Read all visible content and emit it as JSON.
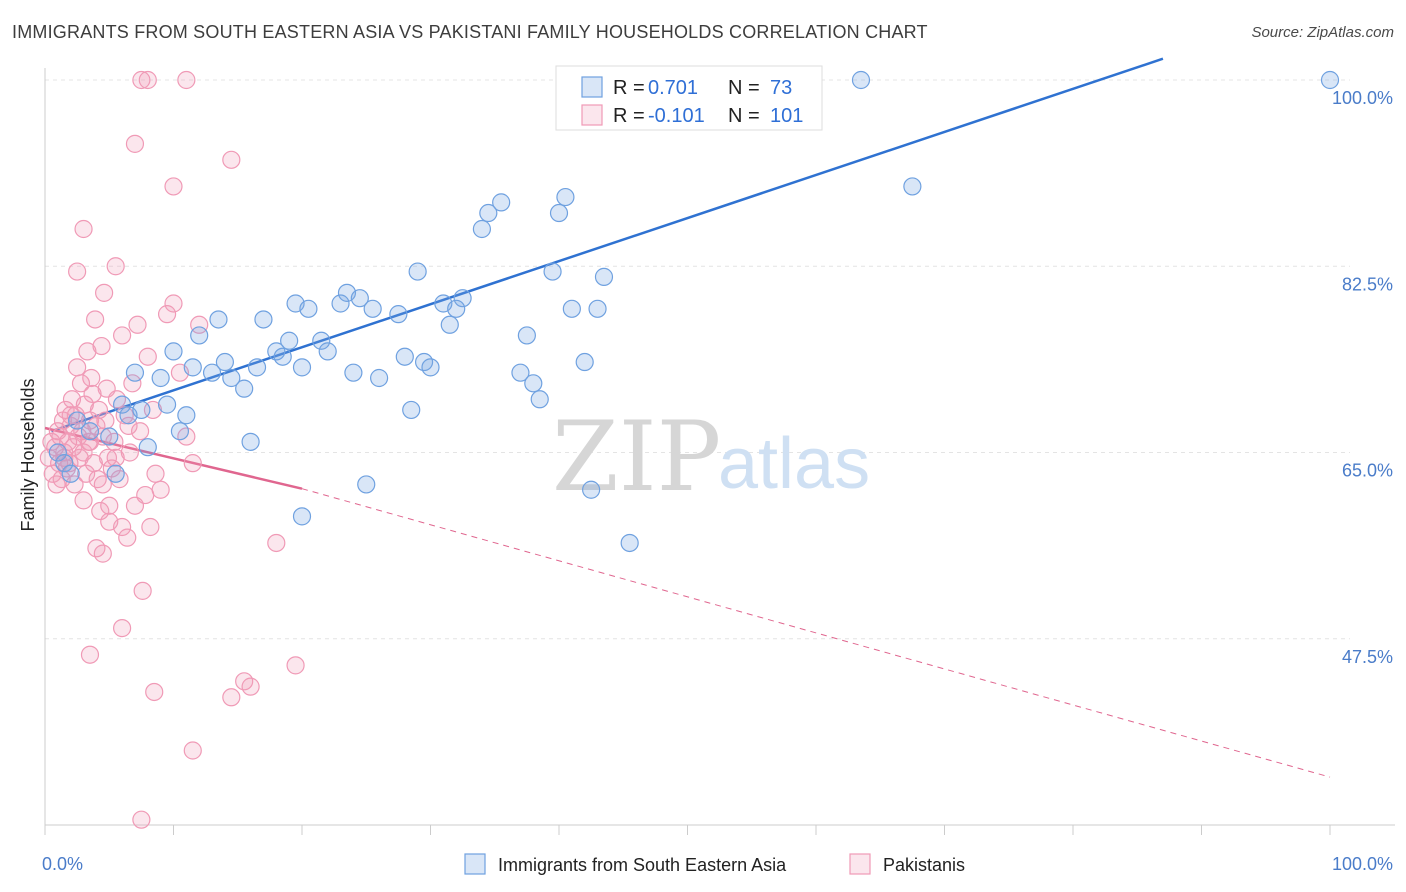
{
  "title": "IMMIGRANTS FROM SOUTH EASTERN ASIA VS PAKISTANI FAMILY HOUSEHOLDS CORRELATION CHART",
  "source": "Source: ZipAtlas.com",
  "watermark": {
    "zip": "ZIP",
    "atlas": "atlas"
  },
  "colors": {
    "blue": "#6fa1e0",
    "blue_fill": "rgba(120,165,225,0.28)",
    "blue_line": "#2f72d1",
    "pink": "#f09ab6",
    "pink_fill": "rgba(240,154,182,0.25)",
    "pink_line": "#e0668f",
    "tick_label": "#4a7cc9",
    "grid": "#e4e4e4"
  },
  "legend": {
    "r_label": "R =",
    "n_label": "N =",
    "rows": [
      {
        "r": "0.701",
        "n": "73",
        "color": "blue"
      },
      {
        "r": "-0.101",
        "n": "101",
        "color": "pink"
      }
    ]
  },
  "chart_data": {
    "type": "scatter",
    "xlabel": "",
    "ylabel": "Family Households",
    "xlim": [
      0,
      100
    ],
    "ylim": [
      30,
      100
    ],
    "x_tick_labels": [
      "0.0%",
      "100.0%"
    ],
    "y_ticks": [
      47.5,
      65.0,
      82.5,
      100.0
    ],
    "y_tick_labels": [
      "47.5%",
      "65.0%",
      "82.5%",
      "100.0%"
    ],
    "grid": true,
    "legend_position": "top-center",
    "series": [
      {
        "name": "Immigrants from South Eastern Asia",
        "color": "blue",
        "trend": {
          "x": [
            0.5,
            87
          ],
          "y": [
            67.0,
            102.0
          ],
          "dashed_to": null
        },
        "points": [
          [
            1.0,
            65.0
          ],
          [
            1.5,
            64.0
          ],
          [
            2.0,
            63.0
          ],
          [
            2.5,
            68.0
          ],
          [
            3.5,
            67.0
          ],
          [
            5.0,
            66.5
          ],
          [
            5.5,
            63.0
          ],
          [
            6.5,
            68.5
          ],
          [
            6.0,
            69.5
          ],
          [
            7.5,
            69.0
          ],
          [
            8.0,
            65.5
          ],
          [
            7.0,
            72.5
          ],
          [
            9.5,
            69.5
          ],
          [
            11.0,
            68.5
          ],
          [
            10.5,
            67.0
          ],
          [
            10.0,
            74.5
          ],
          [
            9.0,
            72.0
          ],
          [
            12.0,
            76.0
          ],
          [
            11.5,
            73.0
          ],
          [
            13.0,
            72.5
          ],
          [
            13.5,
            77.5
          ],
          [
            14.5,
            72.0
          ],
          [
            15.5,
            71.0
          ],
          [
            14.0,
            73.5
          ],
          [
            16.5,
            73.0
          ],
          [
            16.0,
            66.0
          ],
          [
            17.0,
            77.5
          ],
          [
            18.0,
            74.5
          ],
          [
            18.5,
            74.0
          ],
          [
            19.0,
            75.5
          ],
          [
            20.0,
            73.0
          ],
          [
            19.5,
            79.0
          ],
          [
            20.5,
            78.5
          ],
          [
            21.5,
            75.5
          ],
          [
            22.0,
            74.5
          ],
          [
            23.0,
            79.0
          ],
          [
            23.5,
            80.0
          ],
          [
            24.5,
            79.5
          ],
          [
            24.0,
            72.5
          ],
          [
            25.5,
            78.5
          ],
          [
            26.0,
            72.0
          ],
          [
            27.5,
            78.0
          ],
          [
            28.0,
            74.0
          ],
          [
            28.5,
            69.0
          ],
          [
            29.0,
            82.0
          ],
          [
            29.5,
            73.5
          ],
          [
            30.0,
            73.0
          ],
          [
            31.0,
            79.0
          ],
          [
            31.5,
            77.0
          ],
          [
            32.5,
            79.5
          ],
          [
            32.0,
            78.5
          ],
          [
            34.0,
            86.0
          ],
          [
            34.5,
            87.5
          ],
          [
            35.5,
            88.5
          ],
          [
            37.0,
            72.5
          ],
          [
            37.5,
            76.0
          ],
          [
            38.0,
            71.5
          ],
          [
            38.5,
            70.0
          ],
          [
            39.5,
            82.0
          ],
          [
            40.0,
            87.5
          ],
          [
            40.5,
            89.0
          ],
          [
            41.0,
            78.5
          ],
          [
            42.0,
            73.5
          ],
          [
            43.0,
            78.5
          ],
          [
            43.5,
            81.5
          ],
          [
            42.5,
            61.5
          ],
          [
            45.5,
            56.5
          ],
          [
            20.0,
            59.0
          ],
          [
            25.0,
            62.0
          ],
          [
            63.5,
            100.0
          ],
          [
            67.5,
            90.0
          ],
          [
            100.0,
            100.0
          ],
          [
            43.5,
            100.0
          ]
        ]
      },
      {
        "name": "Pakistanis",
        "color": "pink",
        "trend": {
          "x": [
            0.0,
            20.0
          ],
          "y": [
            67.3,
            61.6
          ],
          "dashed_to": [
            100.0,
            34.5
          ]
        },
        "points": [
          [
            0.3,
            64.5
          ],
          [
            0.5,
            66.0
          ],
          [
            0.6,
            63.0
          ],
          [
            0.8,
            65.5
          ],
          [
            0.9,
            62.0
          ],
          [
            1.0,
            67.0
          ],
          [
            1.1,
            64.0
          ],
          [
            1.2,
            66.5
          ],
          [
            1.3,
            62.5
          ],
          [
            1.4,
            68.0
          ],
          [
            1.5,
            65.0
          ],
          [
            1.6,
            69.0
          ],
          [
            1.7,
            63.5
          ],
          [
            1.8,
            66.0
          ],
          [
            1.9,
            64.0
          ],
          [
            2.0,
            67.5
          ],
          [
            2.1,
            70.0
          ],
          [
            2.2,
            65.5
          ],
          [
            2.3,
            62.0
          ],
          [
            2.4,
            68.5
          ],
          [
            2.5,
            73.0
          ],
          [
            2.6,
            66.5
          ],
          [
            2.7,
            64.5
          ],
          [
            2.8,
            71.5
          ],
          [
            2.9,
            67.0
          ],
          [
            3.0,
            65.0
          ],
          [
            3.1,
            69.5
          ],
          [
            3.2,
            63.0
          ],
          [
            3.3,
            74.5
          ],
          [
            3.4,
            66.0
          ],
          [
            3.5,
            68.0
          ],
          [
            3.6,
            72.0
          ],
          [
            3.7,
            70.5
          ],
          [
            3.8,
            64.0
          ],
          [
            3.9,
            77.5
          ],
          [
            4.0,
            67.5
          ],
          [
            4.1,
            62.5
          ],
          [
            4.2,
            69.0
          ],
          [
            4.3,
            59.5
          ],
          [
            4.4,
            75.0
          ],
          [
            4.5,
            66.5
          ],
          [
            4.6,
            80.0
          ],
          [
            4.7,
            68.0
          ],
          [
            4.8,
            71.0
          ],
          [
            4.9,
            64.5
          ],
          [
            5.0,
            58.5
          ],
          [
            5.2,
            63.5
          ],
          [
            5.4,
            66.0
          ],
          [
            5.6,
            70.0
          ],
          [
            5.8,
            62.5
          ],
          [
            6.0,
            76.0
          ],
          [
            6.2,
            68.5
          ],
          [
            6.4,
            57.0
          ],
          [
            6.6,
            65.0
          ],
          [
            6.8,
            71.5
          ],
          [
            7.0,
            60.0
          ],
          [
            7.2,
            77.0
          ],
          [
            7.4,
            67.0
          ],
          [
            7.6,
            52.0
          ],
          [
            7.8,
            61.0
          ],
          [
            8.0,
            74.0
          ],
          [
            8.2,
            58.0
          ],
          [
            8.4,
            69.0
          ],
          [
            8.6,
            63.0
          ],
          [
            9.0,
            61.5
          ],
          [
            9.5,
            78.0
          ],
          [
            10.0,
            79.0
          ],
          [
            10.5,
            72.5
          ],
          [
            11.0,
            66.5
          ],
          [
            11.5,
            64.0
          ],
          [
            12.0,
            77.0
          ],
          [
            2.5,
            82.0
          ],
          [
            3.0,
            86.0
          ],
          [
            5.5,
            82.5
          ],
          [
            3.0,
            60.5
          ],
          [
            4.0,
            56.0
          ],
          [
            5.0,
            60.0
          ],
          [
            6.0,
            58.0
          ],
          [
            7.0,
            94.0
          ],
          [
            7.5,
            100.0
          ],
          [
            8.0,
            100.0
          ],
          [
            11.0,
            100.0
          ],
          [
            10.0,
            90.0
          ],
          [
            14.5,
            92.5
          ],
          [
            6.0,
            48.5
          ],
          [
            3.5,
            46.0
          ],
          [
            8.5,
            42.5
          ],
          [
            11.5,
            37.0
          ],
          [
            14.5,
            42.0
          ],
          [
            15.5,
            43.5
          ],
          [
            16.0,
            43.0
          ],
          [
            18.0,
            56.5
          ],
          [
            19.5,
            45.0
          ],
          [
            7.5,
            30.5
          ],
          [
            4.5,
            55.5
          ],
          [
            2.0,
            68.5
          ],
          [
            1.5,
            64.5
          ],
          [
            3.5,
            66.0
          ],
          [
            4.5,
            62.0
          ],
          [
            6.5,
            67.5
          ],
          [
            5.5,
            64.5
          ]
        ]
      }
    ]
  },
  "bottom_legend": [
    {
      "label": "Immigrants from South Eastern Asia",
      "color": "blue"
    },
    {
      "label": "Pakistanis",
      "color": "pink"
    }
  ]
}
